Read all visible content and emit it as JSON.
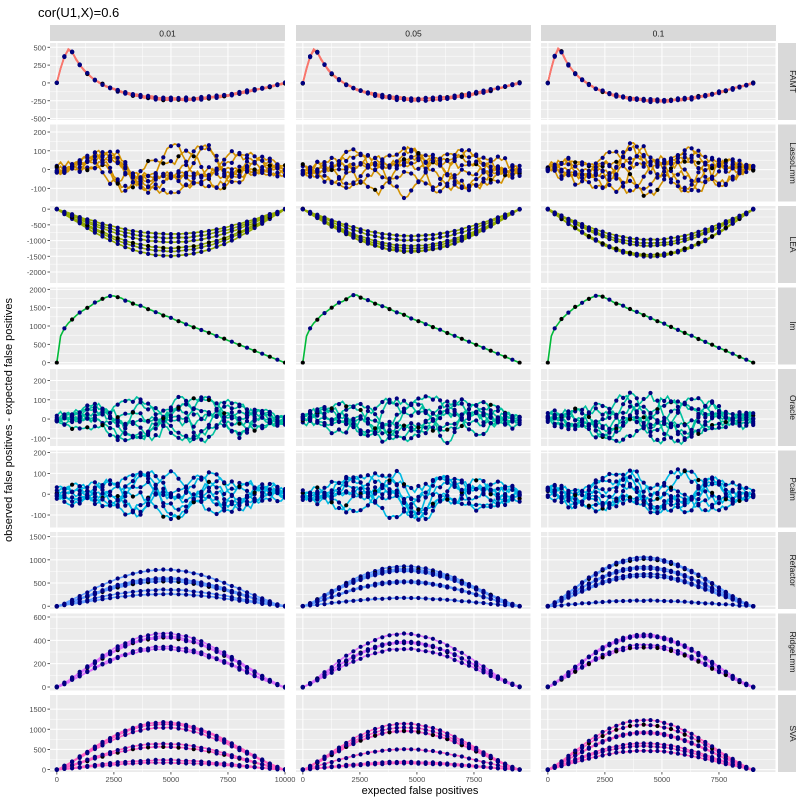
{
  "chart_data": {
    "type": "line",
    "title": "cor(U1,X)=0.6",
    "xlabel": "expected false positives",
    "ylabel": "observed false positives - expected false positives",
    "columns": [
      {
        "label": "0.01",
        "xmax": 10000,
        "xticks": [
          0,
          2500,
          5000,
          7500,
          10000
        ]
      },
      {
        "label": "0.05",
        "xmax": 9500,
        "xticks": [
          0,
          2500,
          5000,
          7500
        ]
      },
      {
        "label": "0.1",
        "xmax": 9000,
        "xticks": [
          0,
          2500,
          5000,
          7500
        ]
      }
    ],
    "xlim": [
      -300,
      10000
    ],
    "point_colors": {
      "points": "#00007f",
      "median": "#000000"
    },
    "rows": [
      {
        "name": "FAMT",
        "color": "#f8766d",
        "ylim": [
          -520,
          560
        ],
        "yticks": [
          500,
          250,
          0,
          -250,
          -500
        ],
        "yticklabels": [
          "500",
          "250",
          "0",
          "-250",
          "-500"
        ],
        "pattern": {
          "kind": "famt",
          "amp": 480,
          "min": -230,
          "spread": 90,
          "n": 4
        }
      },
      {
        "name": "LassoLmm",
        "color": "#d39200",
        "ylim": [
          -170,
          240
        ],
        "yticks": [
          200,
          100,
          0,
          -100
        ],
        "yticklabels": [
          "200",
          "100",
          "0",
          "-100"
        ],
        "pattern": {
          "kind": "noise",
          "amp": 150,
          "n": 8
        }
      },
      {
        "name": "LEA",
        "color": "#93aa00",
        "ylim": [
          -2350,
          100
        ],
        "yticks": [
          0,
          -500,
          -1000,
          -1500,
          -2000
        ],
        "yticklabels": [
          "0",
          "-500",
          "-1000",
          "-1500",
          "-2000"
        ],
        "pattern": {
          "kind": "bowl",
          "amp": -1150,
          "spread": 450,
          "n": 6
        }
      },
      {
        "name": "lm",
        "color": "#00ba38",
        "ylim": [
          -50,
          2050
        ],
        "yticks": [
          0,
          500,
          1000,
          1500,
          2000
        ],
        "yticklabels": [
          "0",
          "500",
          "1000",
          "1500",
          "2000"
        ],
        "pattern": {
          "kind": "lm",
          "amp": 1850,
          "n": 1
        }
      },
      {
        "name": "Oracle",
        "color": "#00c19f",
        "ylim": [
          -140,
          260
        ],
        "yticks": [
          200,
          100,
          0,
          -100
        ],
        "yticklabels": [
          "200",
          "100",
          "0",
          "-100"
        ],
        "pattern": {
          "kind": "noise",
          "amp": 140,
          "n": 8
        }
      },
      {
        "name": "Pcalm",
        "color": "#00b9e3",
        "ylim": [
          -160,
          210
        ],
        "yticks": [
          200,
          100,
          0,
          -100
        ],
        "yticklabels": [
          "200",
          "100",
          "0",
          "-100"
        ],
        "pattern": {
          "kind": "noise",
          "amp": 130,
          "n": 8
        }
      },
      {
        "name": "Refactor",
        "color": "#619cff",
        "ylim": [
          -60,
          1600
        ],
        "yticks": [
          0,
          500,
          1000,
          1500
        ],
        "yticklabels": [
          "0",
          "500",
          "1000",
          "1500"
        ],
        "pattern": {
          "kind": "hump",
          "amp": 700,
          "spread": 700,
          "n": 7
        }
      },
      {
        "name": "RidgeLmm",
        "color": "#db72fb",
        "ylim": [
          -30,
          630
        ],
        "yticks": [
          0,
          200,
          400,
          600
        ],
        "yticklabels": [
          "0",
          "200",
          "400",
          "600"
        ],
        "pattern": {
          "kind": "hump",
          "amp": 460,
          "spread": 100,
          "n": 5
        }
      },
      {
        "name": "SVA",
        "color": "#ff61c3",
        "ylim": [
          -60,
          1850
        ],
        "yticks": [
          0,
          500,
          1000,
          1500
        ],
        "yticklabels": [
          "0",
          "500",
          "1000",
          "1500"
        ],
        "pattern": {
          "kind": "hump",
          "amp": 800,
          "spread": 850,
          "n": 7
        }
      }
    ]
  }
}
